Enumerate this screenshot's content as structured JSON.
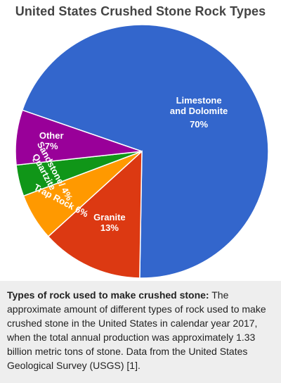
{
  "chart_data": {
    "type": "pie",
    "title": "United States Crushed Stone Rock Types",
    "slices": [
      {
        "label_lines": [
          "Limestone",
          "and Dolomite"
        ],
        "value": 70,
        "value_label": "70%",
        "color": "#3366cc"
      },
      {
        "label_lines": [
          "Granite"
        ],
        "value": 13,
        "value_label": "13%",
        "color": "#dc3912"
      },
      {
        "label_lines": [
          "Trap Rock"
        ],
        "value": 6,
        "value_label": "6%",
        "color": "#ff9900"
      },
      {
        "label_lines": [
          "Sandstone/",
          "Quartzite"
        ],
        "value": 4,
        "value_label": "4%",
        "color": "#109618"
      },
      {
        "label_lines": [
          "Other"
        ],
        "value": 7,
        "value_label": "7%",
        "color": "#990099"
      }
    ]
  },
  "caption": {
    "bold": "Types of rock used to make crushed stone:",
    "text": " The approximate amount of different types of rock used to make crushed stone in the United States in calendar year 2017, when the total annual production was approximately 1.33 billion metric tons of stone. Data from the United States Geological Survey (USGS) [1]."
  }
}
